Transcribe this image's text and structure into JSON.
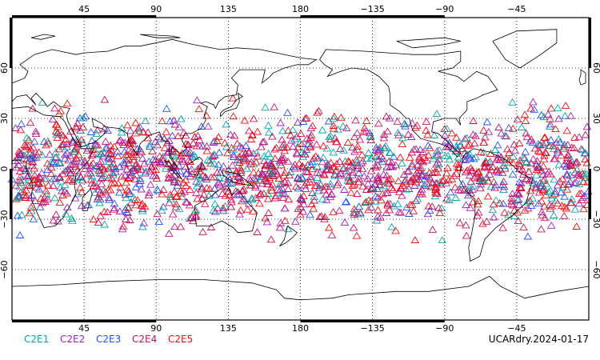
{
  "colors": {
    "background": "#ffffff",
    "frame": "#000000",
    "coast": "#000000",
    "grid": "#000000"
  },
  "map": {
    "projection": "equirectangular",
    "lon_range": [
      0,
      360
    ],
    "lat_range": [
      -90,
      90
    ],
    "top_ticks": [
      "45",
      "90",
      "135",
      "180",
      "−135",
      "−90",
      "−45"
    ],
    "bottom_ticks": [
      "45",
      "90",
      "135",
      "180",
      "−135",
      "−90",
      "−45"
    ],
    "left_ticks": [
      "60",
      "30",
      "0",
      "−30",
      "−60"
    ],
    "right_ticks": [
      "60",
      "30",
      "0",
      "−30",
      "−60"
    ],
    "tick_lons": [
      45,
      90,
      135,
      180,
      225,
      270,
      315
    ],
    "tick_lats": [
      60,
      30,
      0,
      -30,
      -60
    ]
  },
  "observations": {
    "marker": "open-triangle",
    "lat_band": [
      -47,
      47
    ],
    "series": [
      {
        "name": "C2E1",
        "color": "#00aaaa"
      },
      {
        "name": "C2E2",
        "color": "#a020c0"
      },
      {
        "name": "C2E3",
        "color": "#2050ff"
      },
      {
        "name": "C2E4",
        "color": "#cc1060"
      },
      {
        "name": "C2E5",
        "color": "#ee1010"
      }
    ]
  },
  "legend": [
    "C2E1",
    "C2E2",
    "C2E3",
    "C2E4",
    "C2E5"
  ],
  "footer": {
    "label": "UCARdry.2024-01-17"
  }
}
